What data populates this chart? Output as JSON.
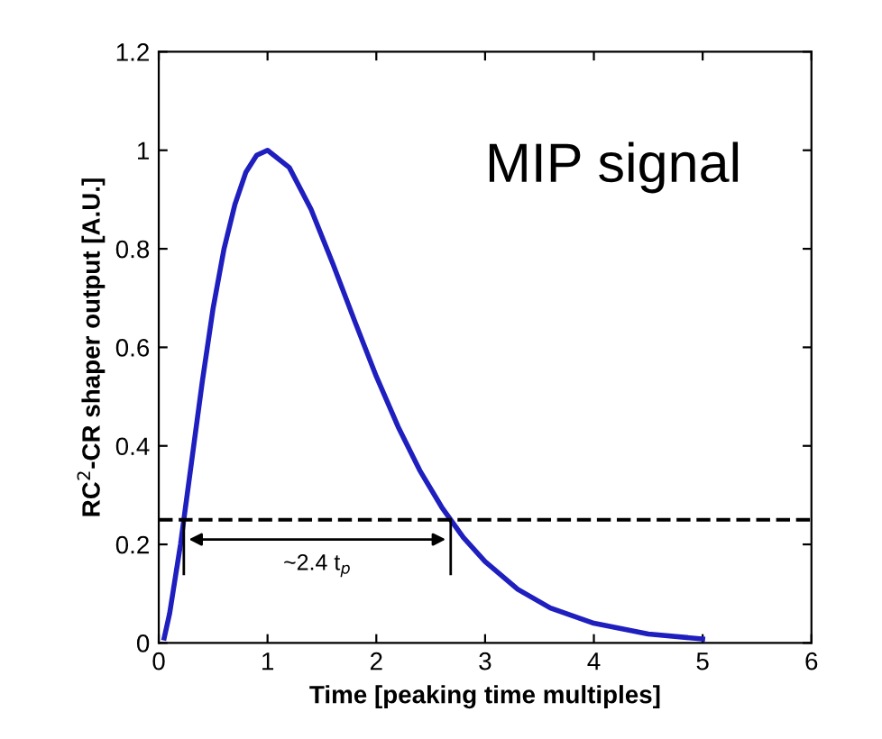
{
  "chart_data": {
    "type": "line",
    "xlabel": "Time [peaking time multiples]",
    "ylabel": "RC$^{2}$-CR shaper output [A.U.]",
    "x": [
      0.05,
      0.1,
      0.2,
      0.3,
      0.4,
      0.5,
      0.6,
      0.7,
      0.8,
      0.9,
      1.0,
      1.2,
      1.4,
      1.6,
      1.8,
      2.0,
      2.2,
      2.4,
      2.6,
      2.8,
      3.0,
      3.3,
      3.6,
      4.0,
      4.5,
      5.0
    ],
    "series": [
      {
        "color": "#1f1fbf",
        "values": [
          0.01,
          0.06,
          0.2,
          0.365,
          0.53,
          0.68,
          0.8,
          0.89,
          0.955,
          0.99,
          1.0,
          0.965,
          0.88,
          0.77,
          0.654,
          0.541,
          0.439,
          0.35,
          0.276,
          0.214,
          0.165,
          0.109,
          0.071,
          0.04,
          0.018,
          0.008
        ]
      }
    ],
    "xlim": [
      0,
      6
    ],
    "xticks": [
      0,
      1,
      2,
      3,
      4,
      5,
      6
    ],
    "ylim": [
      0,
      1.2
    ],
    "yticks": [
      0,
      0.2,
      0.4,
      0.6,
      0.8,
      1,
      1.2
    ],
    "ref_lines": [
      {
        "axis": "y",
        "value": 0.25,
        "color": "#000000",
        "line_style": "dashed"
      }
    ],
    "annotations": [
      "~2.4 t$_{p}$",
      "MIP signal"
    ],
    "grid": false,
    "legend": false,
    "marker": "none",
    "line_style": "solid"
  }
}
